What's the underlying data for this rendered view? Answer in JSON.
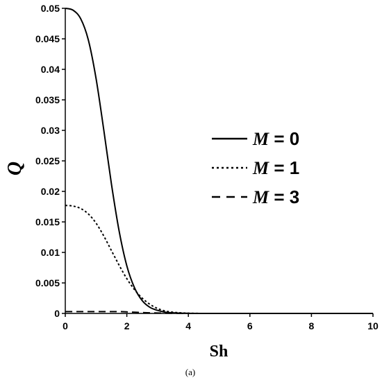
{
  "chart_data": {
    "type": "line",
    "xlabel": "Sh",
    "ylabel": "Q",
    "caption": "(a)",
    "xlim": [
      0,
      10
    ],
    "ylim": [
      0,
      0.05
    ],
    "xticks": [
      "0",
      "2",
      "4",
      "6",
      "8",
      "10"
    ],
    "yticks": [
      "0",
      "0.005",
      "0.01",
      "0.015",
      "0.02",
      "0.025",
      "0.03",
      "0.035",
      "0.04",
      "0.045",
      "0.05"
    ],
    "grid": false,
    "legend_position": "right",
    "x": [
      0,
      0.25,
      0.5,
      0.75,
      1.0,
      1.25,
      1.5,
      1.75,
      2.0,
      2.25,
      2.5,
      2.75,
      3.0,
      3.25,
      3.5,
      3.75,
      4.0,
      4.5,
      5.0,
      6.0,
      7.0,
      8.0,
      9.0,
      10.0
    ],
    "series": [
      {
        "name": "M = 0",
        "style": "solid",
        "values": [
          0.05,
          0.0497,
          0.0483,
          0.0448,
          0.0385,
          0.0301,
          0.0212,
          0.0135,
          0.0078,
          0.0042,
          0.0021,
          0.001,
          0.0005,
          0.0002,
          0.0001,
          4e-05,
          2e-05,
          0,
          0,
          0,
          0,
          0,
          0,
          0
        ]
      },
      {
        "name": "M = 1",
        "style": "dotted",
        "values": [
          0.0177,
          0.0176,
          0.0172,
          0.0163,
          0.0148,
          0.0127,
          0.0103,
          0.0079,
          0.0057,
          0.0039,
          0.0025,
          0.0015,
          0.0008,
          0.0004,
          0.0002,
          0.0001,
          4e-05,
          0,
          0,
          0,
          0,
          0,
          0,
          0
        ]
      },
      {
        "name": "M = 3",
        "style": "dashed",
        "values": [
          0.0003,
          0.0003,
          0.0003,
          0.0003,
          0.0003,
          0.0003,
          0.0003,
          0.0003,
          0.00025,
          0.0002,
          0.00015,
          0.0001,
          7e-05,
          4e-05,
          2e-05,
          1e-05,
          0,
          0,
          0,
          0,
          0,
          0,
          0,
          0
        ]
      }
    ],
    "colors": {
      "line": "#000000",
      "axis": "#000000",
      "background": "#ffffff"
    }
  }
}
